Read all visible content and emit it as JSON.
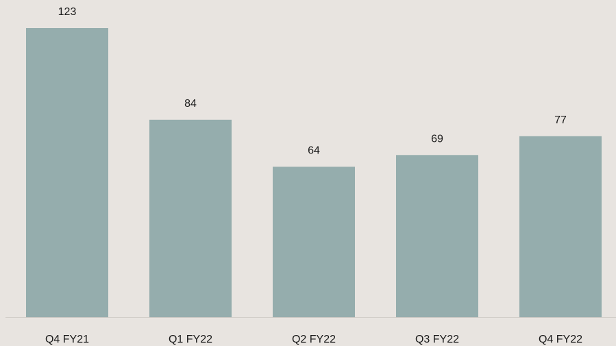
{
  "chart_data": {
    "type": "bar",
    "categories": [
      "Q4 FY21",
      "Q1 FY22",
      "Q2 FY22",
      "Q3 FY22",
      "Q4 FY22"
    ],
    "values": [
      123,
      84,
      64,
      69,
      77
    ],
    "color": "#95adad"
  }
}
